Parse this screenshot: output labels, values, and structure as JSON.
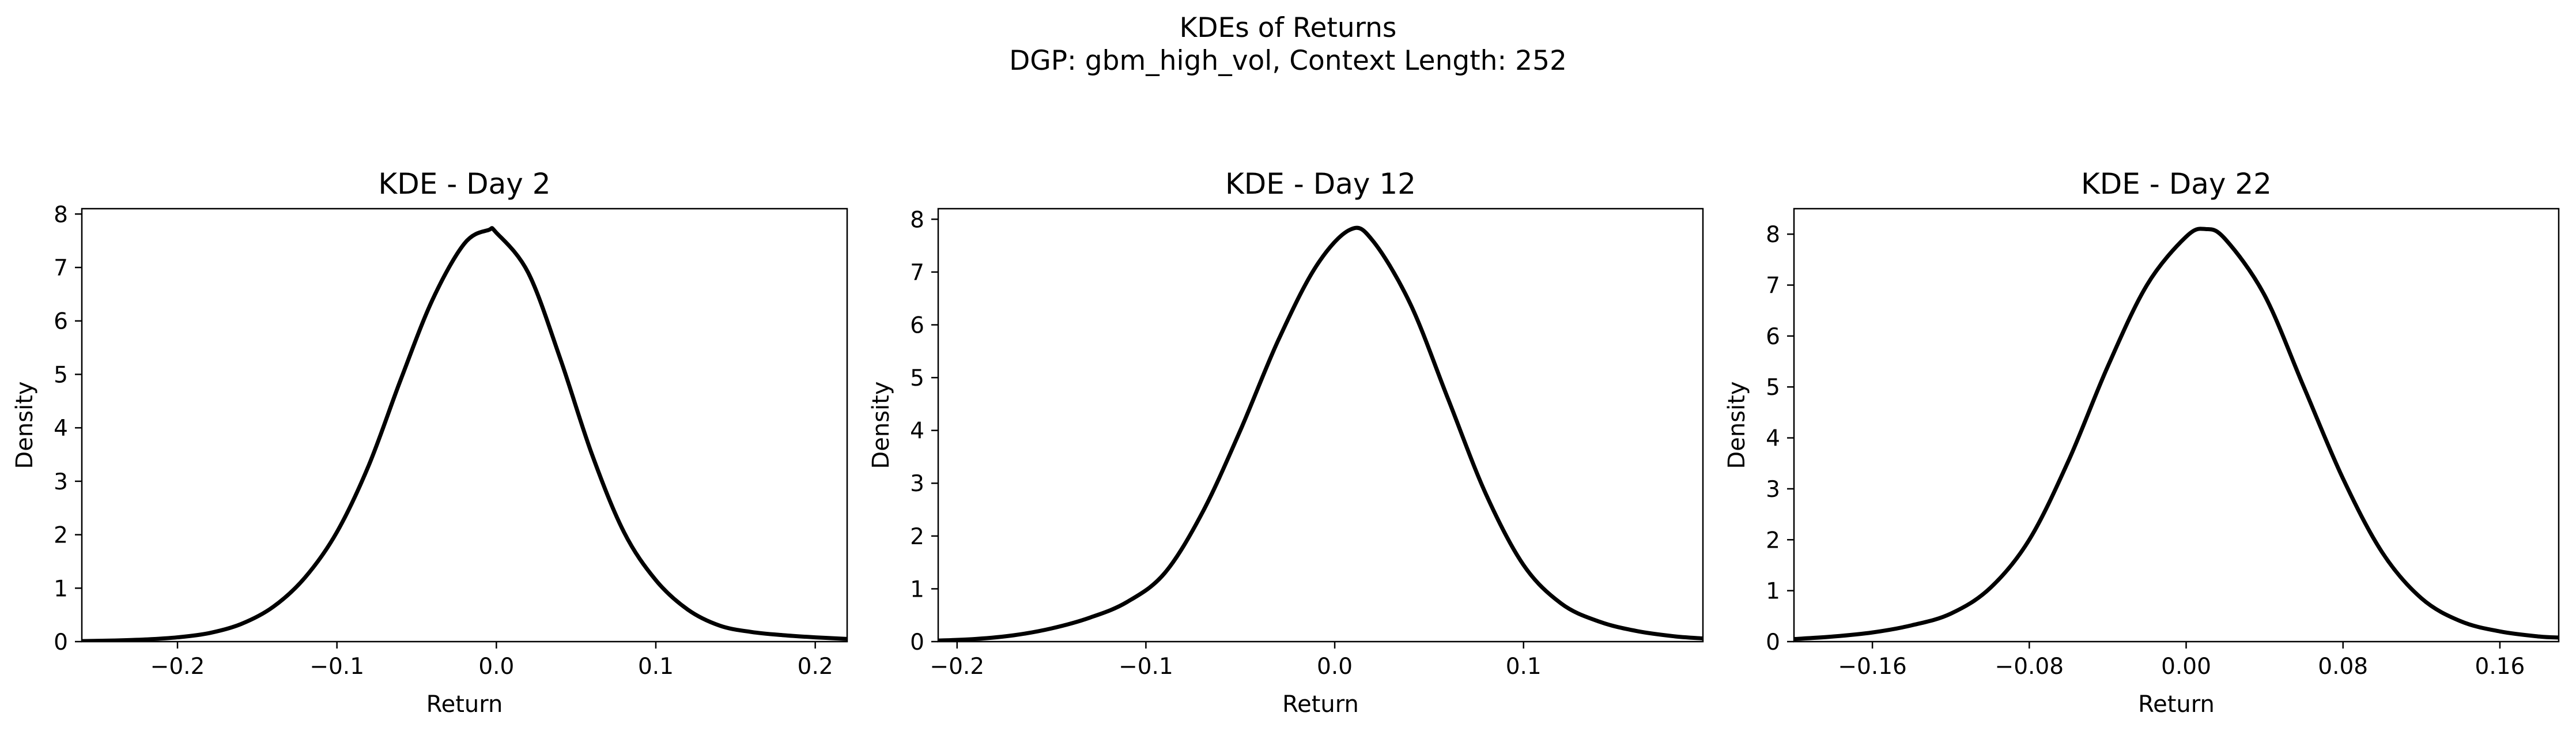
{
  "figure": {
    "title_line1": "KDEs of Returns",
    "title_line2": "DGP: gbm_high_vol, Context Length: 252"
  },
  "chart_data": [
    {
      "type": "line",
      "title": "KDE - Day 2",
      "xlabel": "Return",
      "ylabel": "Density",
      "xlim": [
        -0.26,
        0.22
      ],
      "ylim": [
        0,
        8.1
      ],
      "xticks": [
        -0.2,
        -0.1,
        0.0,
        0.1,
        0.2
      ],
      "xtick_labels": [
        "−0.2",
        "−0.1",
        "0.0",
        "0.1",
        "0.2"
      ],
      "yticks": [
        0,
        1,
        2,
        3,
        4,
        5,
        6,
        7,
        8
      ],
      "ytick_labels": [
        "0",
        "1",
        "2",
        "3",
        "4",
        "5",
        "6",
        "7",
        "8"
      ],
      "grid": false,
      "line_color": "#000000",
      "series": [
        {
          "x": [
            -0.26,
            -0.24,
            -0.22,
            -0.2,
            -0.18,
            -0.16,
            -0.14,
            -0.12,
            -0.1,
            -0.08,
            -0.06,
            -0.04,
            -0.02,
            -0.005,
            0.0,
            0.02,
            0.04,
            0.06,
            0.08,
            0.1,
            0.12,
            0.14,
            0.16,
            0.18,
            0.2,
            0.22
          ],
          "y": [
            0.01,
            0.02,
            0.04,
            0.08,
            0.16,
            0.33,
            0.65,
            1.2,
            2.05,
            3.3,
            4.9,
            6.4,
            7.45,
            7.7,
            7.65,
            6.9,
            5.3,
            3.5,
            2.05,
            1.15,
            0.6,
            0.3,
            0.18,
            0.12,
            0.08,
            0.05
          ]
        }
      ]
    },
    {
      "type": "line",
      "title": "KDE - Day 12",
      "xlabel": "Return",
      "ylabel": "Density",
      "xlim": [
        -0.21,
        0.195
      ],
      "ylim": [
        0,
        8.2
      ],
      "xticks": [
        -0.2,
        -0.1,
        0.0,
        0.1
      ],
      "xtick_labels": [
        "−0.2",
        "−0.1",
        "0.0",
        "0.1"
      ],
      "yticks": [
        0,
        1,
        2,
        3,
        4,
        5,
        6,
        7,
        8
      ],
      "ytick_labels": [
        "0",
        "1",
        "2",
        "3",
        "4",
        "5",
        "6",
        "7",
        "8"
      ],
      "grid": false,
      "line_color": "#000000",
      "series": [
        {
          "x": [
            -0.21,
            -0.19,
            -0.17,
            -0.15,
            -0.13,
            -0.11,
            -0.09,
            -0.07,
            -0.05,
            -0.03,
            -0.01,
            0.008,
            0.02,
            0.04,
            0.06,
            0.08,
            0.1,
            0.12,
            0.14,
            0.16,
            0.18,
            0.195
          ],
          "y": [
            0.02,
            0.05,
            0.12,
            0.25,
            0.45,
            0.75,
            1.3,
            2.45,
            4.0,
            5.7,
            7.1,
            7.8,
            7.6,
            6.4,
            4.6,
            2.8,
            1.45,
            0.72,
            0.38,
            0.2,
            0.1,
            0.06
          ]
        }
      ]
    },
    {
      "type": "line",
      "title": "KDE - Day 22",
      "xlabel": "Return",
      "ylabel": "Density",
      "xlim": [
        -0.2,
        0.19
      ],
      "ylim": [
        0,
        8.5
      ],
      "xticks": [
        -0.16,
        -0.08,
        0.0,
        0.08,
        0.16
      ],
      "xtick_labels": [
        "−0.16",
        "−0.08",
        "0.00",
        "0.08",
        "0.16"
      ],
      "yticks": [
        0,
        1,
        2,
        3,
        4,
        5,
        6,
        7,
        8
      ],
      "ytick_labels": [
        "0",
        "1",
        "2",
        "3",
        "4",
        "5",
        "6",
        "7",
        "8"
      ],
      "grid": false,
      "line_color": "#000000",
      "series": [
        {
          "x": [
            -0.2,
            -0.18,
            -0.16,
            -0.14,
            -0.12,
            -0.1,
            -0.08,
            -0.06,
            -0.04,
            -0.02,
            0.0,
            0.01,
            0.02,
            0.04,
            0.06,
            0.08,
            0.1,
            0.12,
            0.14,
            0.16,
            0.18,
            0.19
          ],
          "y": [
            0.05,
            0.1,
            0.18,
            0.32,
            0.55,
            1.05,
            2.0,
            3.55,
            5.4,
            7.0,
            7.95,
            8.1,
            7.9,
            6.8,
            5.0,
            3.2,
            1.75,
            0.85,
            0.4,
            0.2,
            0.1,
            0.08
          ]
        }
      ]
    }
  ]
}
